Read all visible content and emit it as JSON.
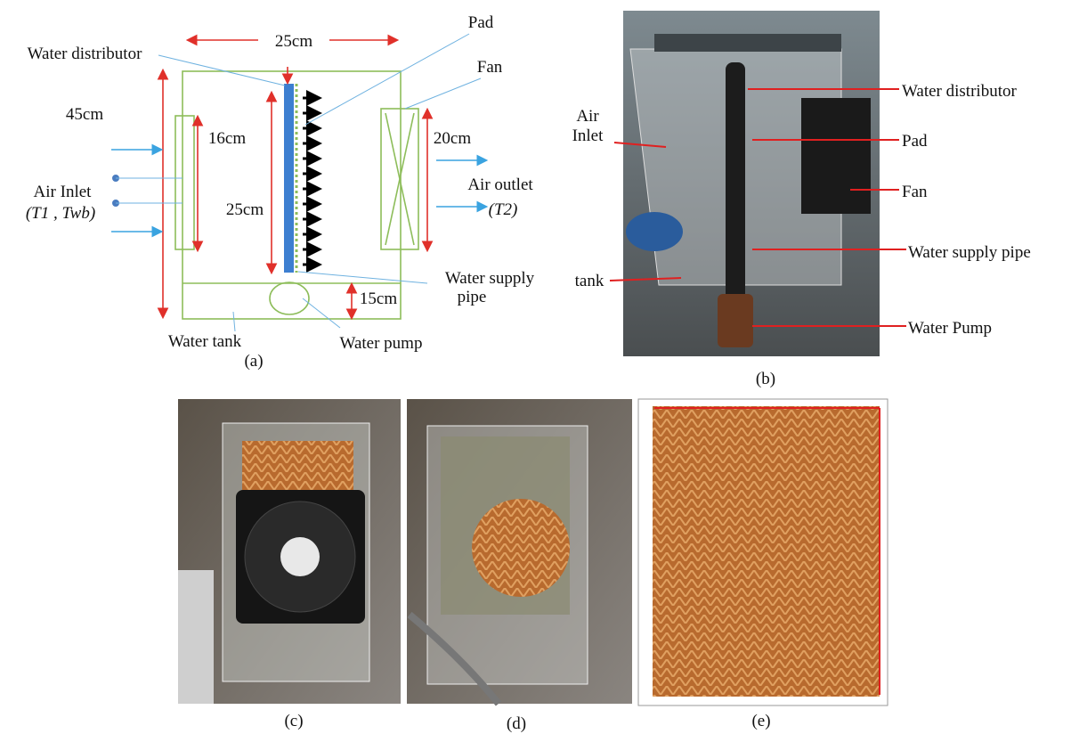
{
  "panel_a": {
    "caption": "(a)",
    "width_label": "25cm",
    "pad": "Pad",
    "water_distributor": "Water distributor",
    "fan": "Fan",
    "height_label": "45cm",
    "inlet_height": "16cm",
    "fan_height": "20cm",
    "pad_height": "25cm",
    "air_inlet": "Air Inlet",
    "inlet_temps": "(T1 , Twb)",
    "air_outlet": "Air outlet",
    "outlet_temp": "(T2)",
    "water_supply": "Water supply",
    "pipe": "pipe",
    "tank_height": "15cm",
    "water_tank": "Water tank",
    "water_pump": "Water pump"
  },
  "panel_b": {
    "caption": "(b)",
    "water_distributor": "Water distributor",
    "air": "Air",
    "inlet": "Inlet",
    "pad": "Pad",
    "fan": "Fan",
    "water_supply_pipe": "Water supply pipe",
    "tank": "tank",
    "water_pump": "Water Pump"
  },
  "panel_c": {
    "caption": "(c)"
  },
  "panel_d": {
    "caption": "(d)"
  },
  "panel_e": {
    "caption": "(e)"
  }
}
